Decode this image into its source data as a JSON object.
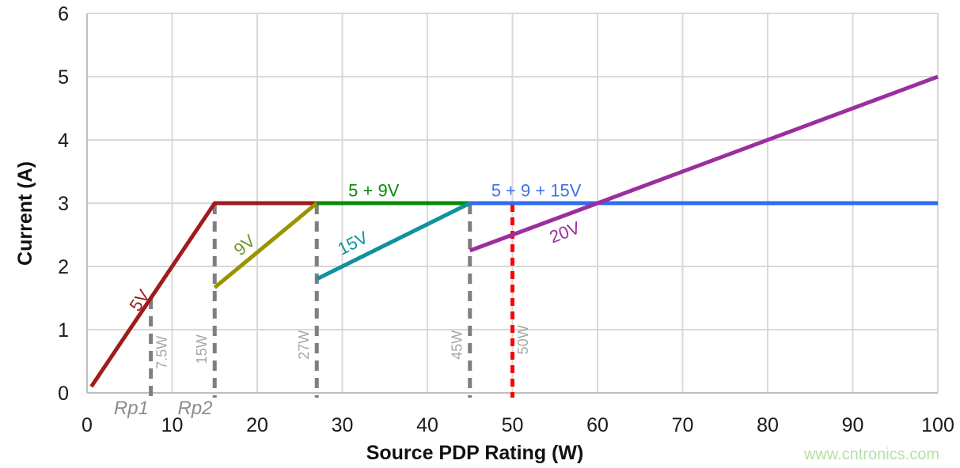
{
  "watermark": {
    "text": "www.cntronics.com",
    "color": "#B5E0A6"
  },
  "chart_data": {
    "type": "line",
    "title": "",
    "xlabel": "Source PDP Rating (W)",
    "ylabel": "Current (A)",
    "xlim": [
      0,
      100
    ],
    "ylim": [
      0,
      6
    ],
    "xticks": [
      0,
      10,
      20,
      30,
      40,
      50,
      60,
      70,
      80,
      90,
      100
    ],
    "yticks": [
      0,
      1,
      2,
      3,
      4,
      5,
      6
    ],
    "grid": true,
    "legend_position": "none",
    "colors": {
      "grid": "#D9D9D9",
      "axis": "#BFBFBF",
      "threshold_label": "#A6A6A6",
      "rp_label": "#8C8C8C"
    },
    "series": [
      {
        "name": "5V",
        "color": "#9E1C1C",
        "label_color": "#9E1C1C",
        "points": [
          [
            0.5,
            0.1
          ],
          [
            15,
            3
          ],
          [
            27,
            3
          ]
        ],
        "label_pos": [
          6.3,
          1.45
        ],
        "label_angle": -56
      },
      {
        "name": "9V",
        "color": "#9A9400",
        "label_color": "#6E9430",
        "points": [
          [
            15,
            1.667
          ],
          [
            27,
            3
          ]
        ],
        "label_pos": [
          18.6,
          2.32
        ],
        "label_angle": -40
      },
      {
        "name": "5 + 9V",
        "color": "#0A8A0A",
        "label_color": "#0A8A0A",
        "points": [
          [
            27,
            3
          ],
          [
            45,
            3
          ]
        ],
        "label_pos": [
          33.7,
          3.18
        ],
        "label_angle": 0
      },
      {
        "name": "15V",
        "color": "#0E939B",
        "label_color": "#0E939B",
        "points": [
          [
            27,
            1.8
          ],
          [
            45,
            3
          ]
        ],
        "label_pos": [
          31.3,
          2.35
        ],
        "label_angle": -27
      },
      {
        "name": "5 + 9 + 15V",
        "color": "#2E6CF0",
        "label_color": "#3E73EA",
        "points": [
          [
            45,
            3
          ],
          [
            100,
            3
          ]
        ],
        "label_pos": [
          52.8,
          3.18
        ],
        "label_angle": 0
      },
      {
        "name": "20V",
        "color": "#9C2E9E",
        "label_color": "#9C2E9E",
        "points": [
          [
            45,
            2.25
          ],
          [
            100,
            5
          ]
        ],
        "label_pos": [
          56.2,
          2.52
        ],
        "label_angle": -20.5
      }
    ],
    "thresholds": [
      {
        "x": 7.5,
        "top": 1.5,
        "label": "7.5W",
        "color": "#7F7F7F",
        "side": "right",
        "label_y": 0.64
      },
      {
        "x": 15,
        "top": 3,
        "label": "15W",
        "color": "#7F7F7F",
        "side": "left",
        "label_y": 0.69
      },
      {
        "x": 27,
        "top": 3,
        "label": "27W",
        "color": "#7F7F7F",
        "side": "left",
        "label_y": 0.76
      },
      {
        "x": 45,
        "top": 3,
        "label": "45W",
        "color": "#7F7F7F",
        "side": "left",
        "label_y": 0.76
      },
      {
        "x": 50,
        "top": 3,
        "label": "50W",
        "color": "#FF0000",
        "side": "right",
        "label_y": 0.84
      }
    ],
    "axis_annotations": [
      {
        "x": 5.2,
        "label": "Rp1"
      },
      {
        "x": 12.7,
        "label": "Rp2"
      }
    ]
  }
}
